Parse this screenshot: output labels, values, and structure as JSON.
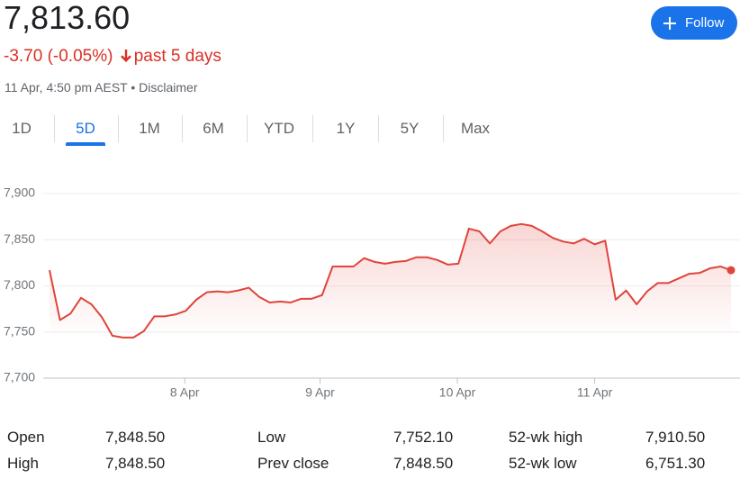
{
  "header": {
    "price": "7,813.60",
    "change": "-3.70 (-0.05%)",
    "period": "past 5 days",
    "timestamp": "11 Apr, 4:50 pm AEST",
    "separator": "•",
    "disclaimer": "Disclaimer",
    "follow": "Follow"
  },
  "tabs": [
    "1D",
    "5D",
    "1M",
    "6M",
    "YTD",
    "1Y",
    "5Y",
    "Max"
  ],
  "selected_tab": "5D",
  "chart_data": {
    "type": "line",
    "color": "#e0443a",
    "values": [
      7817,
      7763,
      7770,
      7787,
      7780,
      7766,
      7746,
      7744,
      7744,
      7751,
      7767,
      7767,
      7769,
      7773,
      7785,
      7793,
      7794,
      7793,
      7795,
      7798,
      7788,
      7782,
      7783,
      7782,
      7786,
      7786,
      7790,
      7821,
      7821,
      7821,
      7830,
      7826,
      7824,
      7826,
      7827,
      7831,
      7831,
      7828,
      7823,
      7824,
      7862,
      7859,
      7846,
      7859,
      7865,
      7867,
      7865,
      7859,
      7852,
      7848,
      7846,
      7851,
      7845,
      7849,
      7785,
      7795,
      7780,
      7794,
      7803,
      7803,
      7808,
      7813,
      7814,
      7819,
      7821,
      7817
    ],
    "xlim": [
      0,
      65
    ],
    "xticks": [
      {
        "value": 12.9,
        "label": "8 Apr"
      },
      {
        "value": 25.8,
        "label": "9 Apr"
      },
      {
        "value": 38.9,
        "label": "10 Apr"
      },
      {
        "value": 52,
        "label": "11 Apr"
      }
    ],
    "ylim": [
      7700,
      7900
    ],
    "yticks": [
      {
        "value": 7700,
        "label": "7,700"
      },
      {
        "value": 7750,
        "label": "7,750"
      },
      {
        "value": 7800,
        "label": "7,800"
      },
      {
        "value": 7850,
        "label": "7,850"
      },
      {
        "value": 7900,
        "label": "7,900"
      }
    ],
    "grid": true
  },
  "stats": {
    "rows": [
      [
        "Open",
        "7,848.50",
        "Low",
        "7,752.10",
        "52-wk high",
        "7,910.50"
      ],
      [
        "High",
        "7,848.50",
        "Prev close",
        "7,848.50",
        "52-wk low",
        "6,751.30"
      ]
    ]
  }
}
